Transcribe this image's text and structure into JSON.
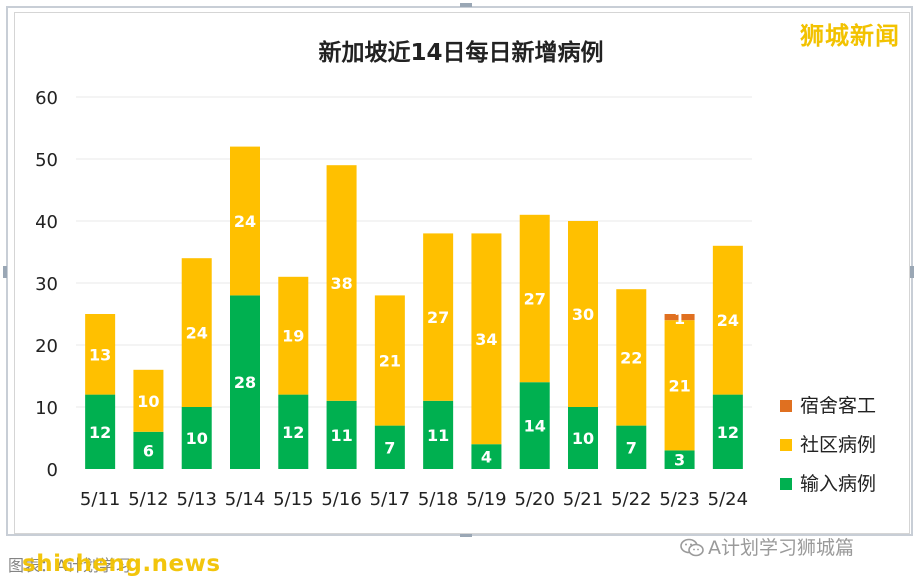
{
  "brand": "狮城新闻",
  "footer": {
    "caption": "图表：A计划学习",
    "watermark": "shicheng.news",
    "wechat_account": "A计划学习狮城篇",
    "wechat_icon": "wechat-icon"
  },
  "colors": {
    "dorm": "#E07020",
    "community": "#FFC000",
    "imported": "#00B050",
    "grid": "#e8e8e8",
    "label_text": "#ffffff"
  },
  "chart_data": {
    "type": "bar",
    "stacked": true,
    "title": "新加坡近14日每日新增病例",
    "categories": [
      "5/11",
      "5/12",
      "5/13",
      "5/14",
      "5/15",
      "5/16",
      "5/17",
      "5/18",
      "5/19",
      "5/20",
      "5/21",
      "5/22",
      "5/23",
      "5/24"
    ],
    "series": [
      {
        "name": "输入病例",
        "color": "#00B050",
        "values": [
          12,
          6,
          10,
          28,
          12,
          11,
          7,
          11,
          4,
          14,
          10,
          7,
          3,
          12
        ]
      },
      {
        "name": "社区病例",
        "color": "#FFC000",
        "values": [
          13,
          10,
          24,
          24,
          19,
          38,
          21,
          27,
          34,
          27,
          30,
          22,
          21,
          24
        ]
      },
      {
        "name": "宿舍客工",
        "color": "#E07020",
        "values": [
          0,
          0,
          0,
          0,
          0,
          0,
          0,
          0,
          0,
          0,
          0,
          0,
          1,
          0
        ]
      }
    ],
    "data_labels": {
      "输入病例": [
        "12",
        "6",
        "10",
        "28",
        "12",
        "11",
        "7",
        "11",
        "4",
        "14",
        "10",
        "7",
        "3",
        "12"
      ],
      "社区病例": [
        "13",
        "10",
        "24",
        "24",
        "19",
        "38",
        "21",
        "27",
        "34",
        "27",
        "30",
        "22",
        "21",
        "24"
      ],
      "宿舍客工": [
        "",
        "",
        "",
        "",
        "",
        "",
        "",
        "",
        "",
        "",
        "",
        "",
        "1",
        ""
      ]
    },
    "ylim": [
      0,
      60
    ],
    "yticks": [
      "0",
      "10",
      "20",
      "30",
      "40",
      "50",
      "60"
    ],
    "grid": true,
    "legend_position": "right-bottom",
    "legend_order": [
      "宿舍客工",
      "社区病例",
      "输入病例"
    ]
  }
}
